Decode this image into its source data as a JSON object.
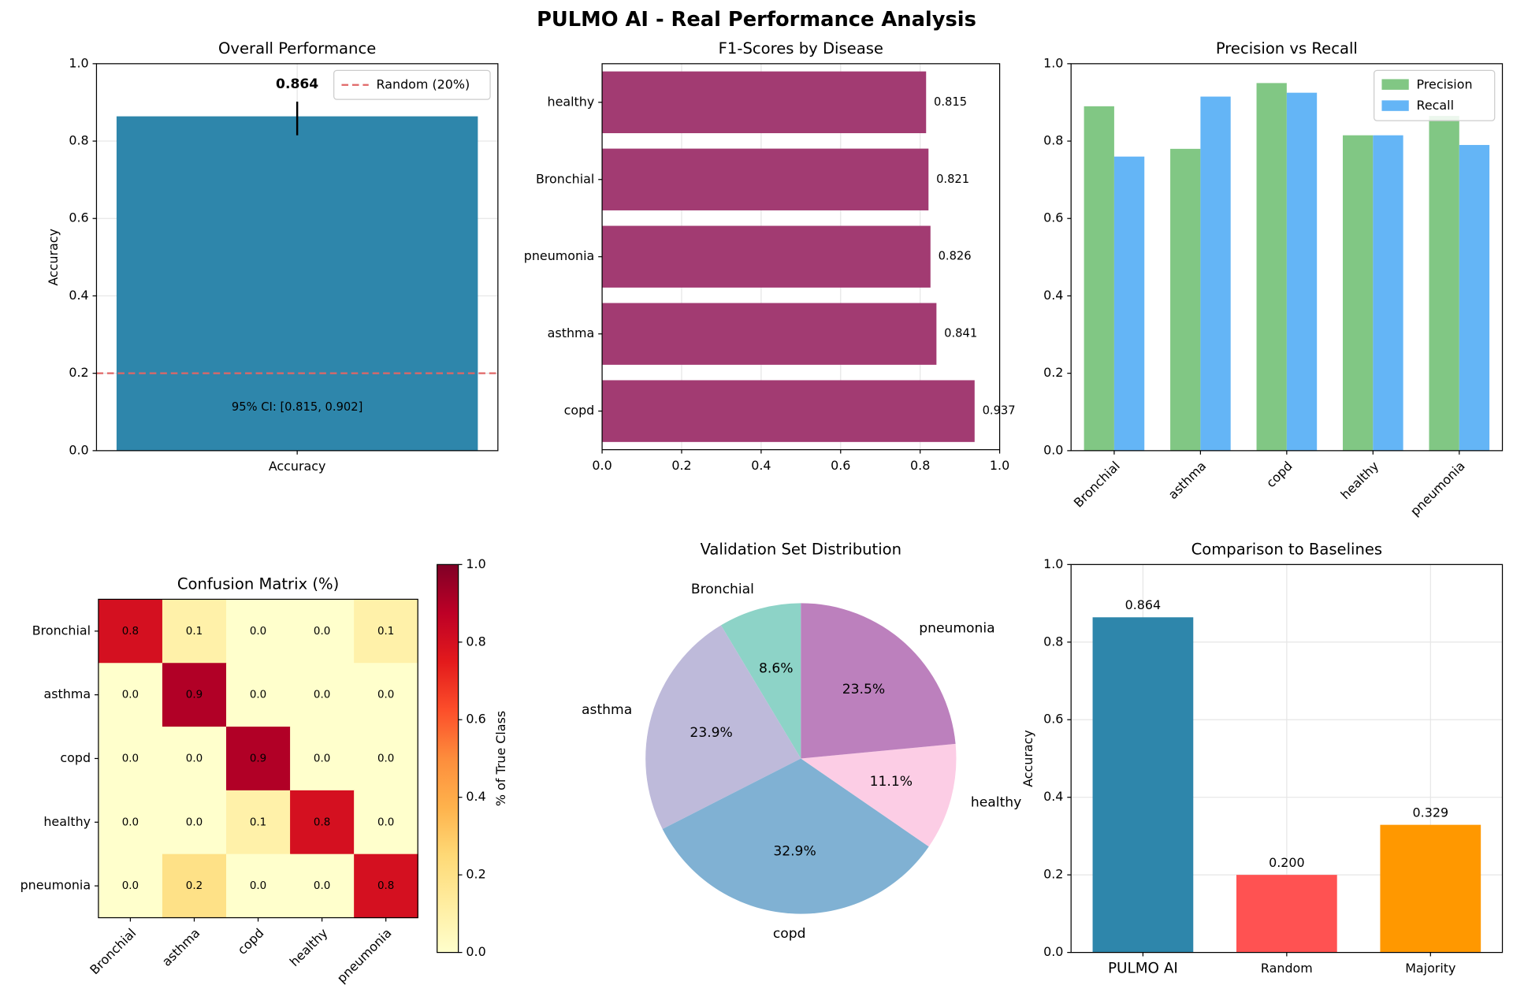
{
  "title": "PULMO AI - Real Performance Analysis",
  "chart_data": [
    {
      "type": "bar",
      "title": "Overall Performance",
      "ylabel": "Accuracy",
      "categories": [
        "Accuracy"
      ],
      "values": [
        0.864
      ],
      "show_values": true,
      "color": "#2e86ab",
      "ci": [
        0.815,
        0.902
      ],
      "annotation": "95% CI: [0.815, 0.902]",
      "hline": {
        "value": 0.2,
        "label": "Random (20%)",
        "color": "#e06666"
      },
      "legend": "upper right",
      "ylim": [
        0,
        1
      ],
      "yticks": [
        {
          "value": 0,
          "label": "0.0"
        },
        0.2,
        0.4,
        0.6,
        0.8,
        {
          "value": 1,
          "label": "1.0"
        }
      ],
      "grid": true
    },
    {
      "type": "barh",
      "title": "F1-Scores by Disease",
      "categories": [
        "copd",
        "asthma",
        "pneumonia",
        "Bronchial",
        "healthy"
      ],
      "values": [
        0.937,
        0.841,
        0.826,
        0.821,
        0.815
      ],
      "show_values": true,
      "color": "#a23b72",
      "xlim": [
        0,
        1
      ],
      "xticks": [
        {
          "value": 0,
          "label": "0.0"
        },
        0.2,
        0.4,
        0.6,
        0.8,
        {
          "value": 1,
          "label": "1.0"
        }
      ],
      "grid": true
    },
    {
      "type": "bar",
      "title": "Precision vs Recall",
      "categories": [
        "Bronchial",
        "asthma",
        "copd",
        "healthy",
        "pneumonia"
      ],
      "xtick_rotation": 45,
      "series": [
        {
          "name": "Precision",
          "color": "#81c784",
          "values": [
            0.89,
            0.78,
            0.95,
            0.815,
            0.865
          ]
        },
        {
          "name": "Recall",
          "color": "#64b5f6",
          "values": [
            0.76,
            0.915,
            0.925,
            0.815,
            0.79
          ]
        }
      ],
      "legend": "upper right",
      "ylim": [
        0,
        1
      ],
      "yticks": [
        {
          "value": 0,
          "label": "0.0"
        },
        0.2,
        0.4,
        0.6,
        0.8,
        {
          "value": 1,
          "label": "1.0"
        }
      ],
      "grid": false
    },
    {
      "type": "heatmap",
      "title": "Confusion Matrix (%)",
      "labels": [
        "Bronchial",
        "asthma",
        "copd",
        "healthy",
        "pneumonia"
      ],
      "xtick_rotation": 45,
      "values": [
        [
          0.8,
          0.1,
          0,
          0,
          0.1
        ],
        [
          0,
          0.9,
          0,
          0,
          0
        ],
        [
          0,
          0,
          0.9,
          0,
          0
        ],
        [
          0,
          0,
          0.1,
          0.8,
          0
        ],
        [
          0,
          0.2,
          0,
          0,
          0.8
        ]
      ],
      "value_labels": [
        [
          "0.8",
          "0.1",
          "0.0",
          "0.0",
          "0.1"
        ],
        [
          "0.0",
          "0.9",
          "0.0",
          "0.0",
          "0.0"
        ],
        [
          "0.0",
          "0.0",
          "0.9",
          "0.0",
          "0.0"
        ],
        [
          "0.0",
          "0.0",
          "0.1",
          "0.8",
          "0.0"
        ],
        [
          "0.0",
          "0.2",
          "0.0",
          "0.0",
          "0.8"
        ]
      ],
      "colormap": "YlOrRd",
      "clim": [
        0,
        1
      ],
      "colorbar_label": "% of True Class",
      "cticks": [
        {
          "value": 0,
          "label": "0.0"
        },
        0.2,
        0.4,
        0.6,
        0.8,
        {
          "value": 1,
          "label": "1.0"
        }
      ]
    },
    {
      "type": "pie",
      "title": "Validation Set Distribution",
      "labels": [
        "Bronchial",
        "asthma",
        "copd",
        "healthy",
        "pneumonia"
      ],
      "values": [
        8.6,
        23.9,
        32.9,
        11.1,
        23.5
      ],
      "value_labels": [
        "8.6%",
        "23.9%",
        "32.9%",
        "11.1%",
        "23.5%"
      ],
      "colors": [
        "#8dd3c7",
        "#bebada",
        "#80b1d3",
        "#fccde5",
        "#bc80bd"
      ]
    },
    {
      "type": "bar",
      "title": "Comparison to Baselines",
      "ylabel": "Accuracy",
      "categories": [
        "PULMO AI",
        "Random",
        "Majority"
      ],
      "values": [
        0.864,
        0.2,
        0.329
      ],
      "value_labels": [
        "0.864",
        "0.200",
        "0.329"
      ],
      "colors": [
        "#2e86ab",
        "#ff5252",
        "#ff9800"
      ],
      "ylim": [
        0,
        1
      ],
      "yticks": [
        {
          "value": 0,
          "label": "0.0"
        },
        0.2,
        0.4,
        0.6,
        0.8,
        {
          "value": 1,
          "label": "1.0"
        }
      ],
      "grid": true
    }
  ]
}
